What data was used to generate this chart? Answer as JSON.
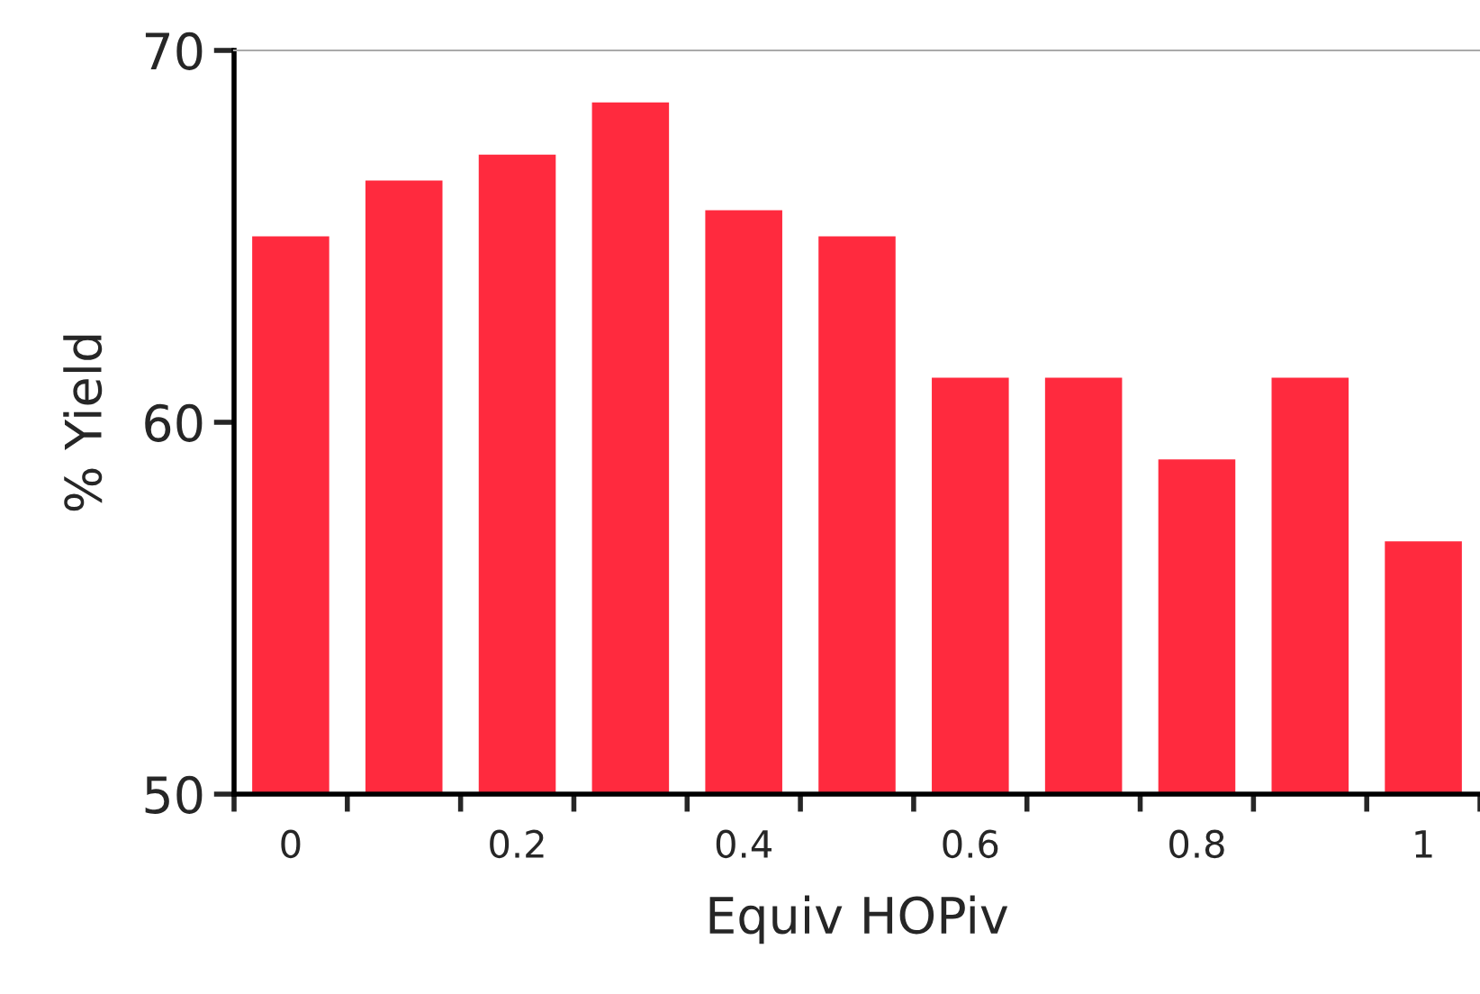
{
  "chart_data": {
    "type": "bar",
    "categories": [
      "0",
      null,
      "0.2",
      null,
      "0.4",
      null,
      "0.6",
      null,
      "0.8",
      null,
      "1"
    ],
    "values": [
      65,
      66.5,
      67.2,
      68.6,
      65.7,
      65,
      61.2,
      61.2,
      59,
      61.2,
      56.8
    ],
    "color": "#ff2a3e",
    "xlabel": "Equiv HOPiv",
    "ylabel": "% Yield",
    "ylim": [
      50,
      70
    ],
    "yticks": [
      50,
      60,
      70
    ],
    "grid": false
  }
}
